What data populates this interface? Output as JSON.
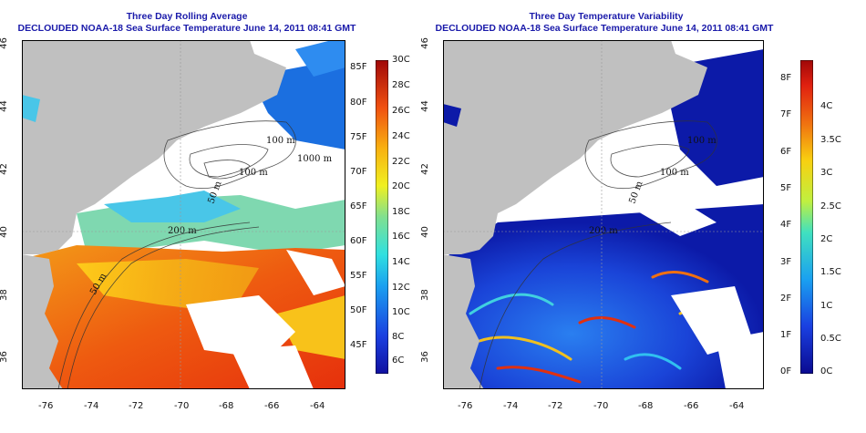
{
  "left": {
    "title": "Three Day Rolling Average",
    "subtitle": "DECLOUDED NOAA-18 Sea Surface Temperature June 14, 2011 08:41 GMT",
    "colorbar_fahrenheit": [
      "85F",
      "80F",
      "75F",
      "70F",
      "65F",
      "60F",
      "55F",
      "50F",
      "45F"
    ],
    "colorbar_celsius": [
      "30C",
      "28C",
      "26C",
      "24C",
      "22C",
      "20C",
      "18C",
      "16C",
      "14C",
      "12C",
      "10C",
      "8C",
      "6C"
    ],
    "contour_labels": [
      "100 m",
      "100 m",
      "1000 m",
      "50 m",
      "200 m",
      "50 m"
    ]
  },
  "right": {
    "title": "Three Day Temperature Variability",
    "subtitle": "DECLOUDED NOAA-18 Sea Surface Temperature June 14, 2011 08:41 GMT",
    "colorbar_fahrenheit": [
      "8F",
      "7F",
      "6F",
      "5F",
      "4F",
      "3F",
      "2F",
      "1F",
      "0F"
    ],
    "colorbar_celsius": [
      "4C",
      "3.5C",
      "3C",
      "2.5C",
      "2C",
      "1.5C",
      "1C",
      "0.5C",
      "0C"
    ],
    "contour_labels": [
      "100 m",
      "100 m",
      "50 m",
      "200 m"
    ]
  },
  "axes": {
    "x_ticks": [
      "-76",
      "-74",
      "-72",
      "-70",
      "-68",
      "-66",
      "-64"
    ],
    "y_ticks": [
      "46",
      "44",
      "42",
      "40",
      "38",
      "36"
    ]
  },
  "colors": {
    "land": "#c0c0c0",
    "cloud": "#ffffff",
    "title": "#1a1aaa"
  }
}
